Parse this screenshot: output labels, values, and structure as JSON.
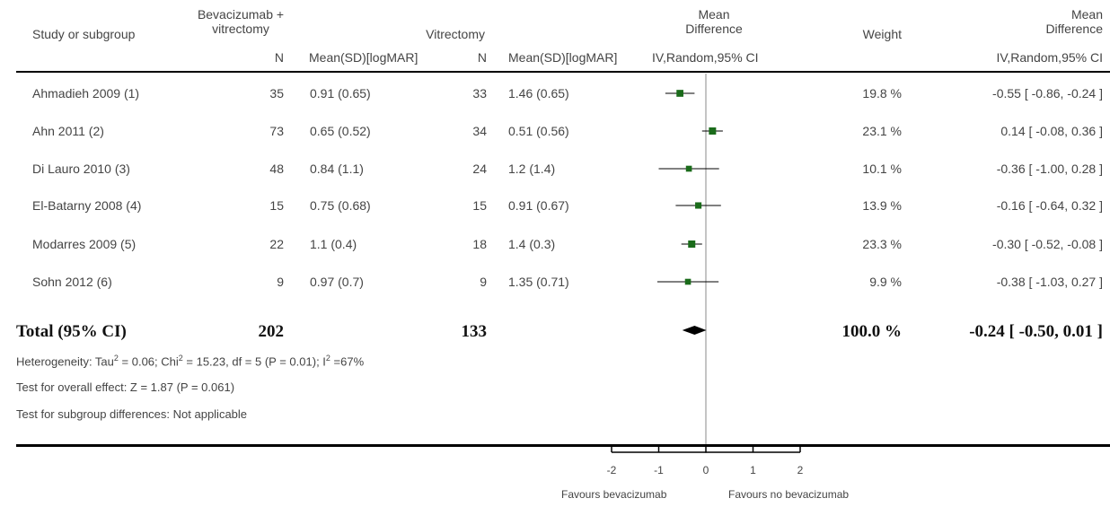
{
  "headers": {
    "study": "Study or subgroup",
    "group1": "Bevacizumab + vitrectomy",
    "group2": "Vitrectomy",
    "md_plot": "Mean Difference",
    "weight": "Weight",
    "md_text": "Mean Difference",
    "n": "N",
    "mean_sd": "Mean(SD)[logMAR]",
    "method_plot": "IV,Random,95% CI",
    "method_text": "IV,Random,95% CI"
  },
  "studies": [
    {
      "name": "Ahmadieh 2009 (1)",
      "n1": "35",
      "m1": "0.91 (0.65)",
      "n2": "33",
      "m2": "1.46 (0.65)",
      "weight": "19.8 %",
      "ci_text": "-0.55 [ -0.86, -0.24 ]"
    },
    {
      "name": "Ahn 2011 (2)",
      "n1": "73",
      "m1": "0.65 (0.52)",
      "n2": "34",
      "m2": "0.51 (0.56)",
      "weight": "23.1 %",
      "ci_text": "0.14 [ -0.08, 0.36 ]"
    },
    {
      "name": "Di Lauro 2010 (3)",
      "n1": "48",
      "m1": "0.84 (1.1)",
      "n2": "24",
      "m2": "1.2 (1.4)",
      "weight": "10.1 %",
      "ci_text": "-0.36 [ -1.00, 0.28 ]"
    },
    {
      "name": "El-Batarny 2008 (4)",
      "n1": "15",
      "m1": "0.75 (0.68)",
      "n2": "15",
      "m2": "0.91 (0.67)",
      "weight": "13.9 %",
      "ci_text": "-0.16 [ -0.64, 0.32 ]"
    },
    {
      "name": "Modarres 2009 (5)",
      "n1": "22",
      "m1": "1.1 (0.4)",
      "n2": "18",
      "m2": "1.4 (0.3)",
      "weight": "23.3 %",
      "ci_text": "-0.30 [ -0.52, -0.08 ]"
    },
    {
      "name": "Sohn 2012 (6)",
      "n1": "9",
      "m1": "0.97 (0.7)",
      "n2": "9",
      "m2": "1.35 (0.71)",
      "weight": "9.9 %",
      "ci_text": "-0.38 [ -1.03, 0.27 ]"
    }
  ],
  "total": {
    "label": "Total (95% CI)",
    "n1": "202",
    "n2": "133",
    "weight": "100.0 %",
    "ci_text": "-0.24 [ -0.50, 0.01 ]"
  },
  "stats": {
    "heterogeneity_prefix": "Heterogeneity: Tau",
    "heterogeneity_mid": " = 0.06; Chi",
    "heterogeneity_mid2": " = 15.23, df = 5 (P = 0.01); I",
    "heterogeneity_suffix": " =67%",
    "sup": "2",
    "overall": "Test for overall effect: Z = 1.87 (P = 0.061)",
    "subgroup": "Test for subgroup differences: Not applicable"
  },
  "axis": {
    "favours_left": "Favours bevacizumab",
    "favours_right": "Favours no bevacizumab"
  },
  "colors": {
    "marker": "#1a6b1a",
    "line": "#000000",
    "null_line": "#888888"
  },
  "chart_data": {
    "type": "forest",
    "xlim": [
      -2,
      2
    ],
    "ticks": [
      -2,
      -1,
      0,
      1,
      2
    ],
    "tick_labels": [
      "-2",
      "-1",
      "0",
      "1",
      "2"
    ],
    "null_value": 0,
    "points": [
      {
        "study": "Ahmadieh 2009 (1)",
        "md": -0.55,
        "lo": -0.86,
        "hi": -0.24,
        "weight": 19.8
      },
      {
        "study": "Ahn 2011 (2)",
        "md": 0.14,
        "lo": -0.08,
        "hi": 0.36,
        "weight": 23.1
      },
      {
        "study": "Di Lauro 2010 (3)",
        "md": -0.36,
        "lo": -1.0,
        "hi": 0.28,
        "weight": 10.1
      },
      {
        "study": "El-Batarny 2008 (4)",
        "md": -0.16,
        "lo": -0.64,
        "hi": 0.32,
        "weight": 13.9
      },
      {
        "study": "Modarres 2009 (5)",
        "md": -0.3,
        "lo": -0.52,
        "hi": -0.08,
        "weight": 23.3
      },
      {
        "study": "Sohn 2012 (6)",
        "md": -0.38,
        "lo": -1.03,
        "hi": 0.27,
        "weight": 9.9
      }
    ],
    "pooled": {
      "md": -0.24,
      "lo": -0.5,
      "hi": 0.01
    }
  }
}
